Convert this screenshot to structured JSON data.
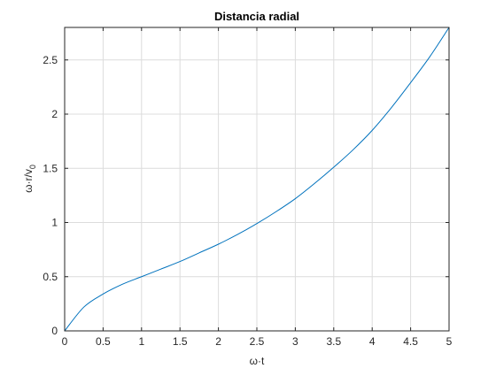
{
  "chart_data": {
    "type": "line",
    "title": "Distancia radial",
    "xlabel": "ω·t",
    "ylabel_main": "ω·r/v",
    "ylabel_sub": "0",
    "xlim": [
      0,
      5
    ],
    "ylim": [
      0,
      2.8
    ],
    "grid": true,
    "x_ticks": [
      0,
      0.5,
      1,
      1.5,
      2,
      2.5,
      3,
      3.5,
      4,
      4.5,
      5
    ],
    "x_tick_labels": [
      "0",
      "0.5",
      "1",
      "1.5",
      "2",
      "2.5",
      "3",
      "3.5",
      "4",
      "4.5",
      "5"
    ],
    "y_ticks": [
      0,
      0.5,
      1,
      1.5,
      2,
      2.5
    ],
    "y_tick_labels": [
      "0",
      "0.5",
      "1",
      "1.5",
      "2",
      "2.5"
    ],
    "series": [
      {
        "color": "#0072bd",
        "x": [
          0,
          0.25,
          0.5,
          0.75,
          1,
          1.25,
          1.5,
          1.75,
          2,
          2.25,
          2.5,
          2.75,
          3,
          3.25,
          3.5,
          3.75,
          4,
          4.25,
          4.5,
          4.75,
          5
        ],
        "y": [
          0,
          0.22,
          0.34,
          0.43,
          0.5,
          0.57,
          0.64,
          0.72,
          0.8,
          0.89,
          0.99,
          1.1,
          1.22,
          1.36,
          1.51,
          1.67,
          1.85,
          2.06,
          2.29,
          2.53,
          2.8
        ]
      }
    ]
  }
}
